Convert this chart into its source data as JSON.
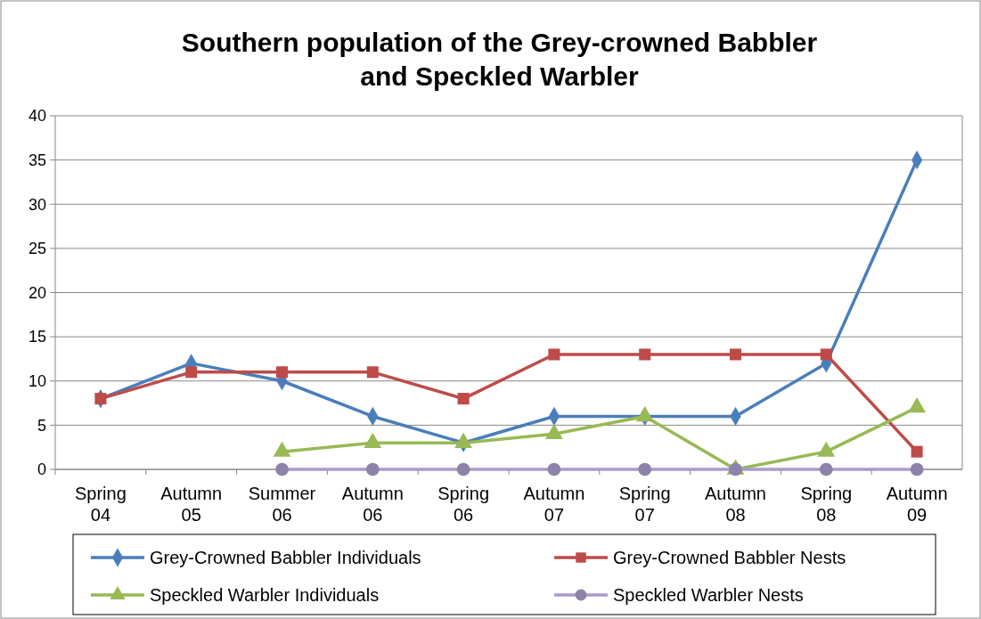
{
  "chart_data": {
    "type": "line",
    "title": "Southern population of the Grey-crowned Babbler and Speckled Warbler",
    "categories": [
      "Spring 04",
      "Autumn 05",
      "Summer 06",
      "Autumn 06",
      "Spring 06",
      "Autumn 07",
      "Spring 07",
      "Autumn 08",
      "Spring 08",
      "Autumn 09"
    ],
    "series": [
      {
        "name": "Grey-Crowned Babbler Individuals",
        "color": "#4a7ebb",
        "marker": "diamond",
        "values": [
          8,
          12,
          10,
          6,
          3,
          6,
          6,
          6,
          12,
          35
        ]
      },
      {
        "name": "Grey-Crowned Babbler Nests",
        "color": "#be4b48",
        "marker": "square",
        "values": [
          8,
          11,
          11,
          11,
          8,
          13,
          13,
          13,
          13,
          2
        ]
      },
      {
        "name": "Speckled Warbler Individuals",
        "color": "#98b954",
        "marker": "triangle",
        "values": [
          null,
          null,
          2,
          3,
          3,
          4,
          6,
          0,
          2,
          7
        ]
      },
      {
        "name": "Speckled Warbler Nests",
        "color": "#a99bcb",
        "marker": "circle",
        "values": [
          null,
          null,
          0,
          0,
          0,
          0,
          0,
          0,
          0,
          0
        ]
      }
    ],
    "ylim": [
      0,
      40
    ],
    "yticks": [
      0,
      5,
      10,
      15,
      20,
      25,
      30,
      35,
      40
    ],
    "grid": "y",
    "legend": "bottom"
  }
}
